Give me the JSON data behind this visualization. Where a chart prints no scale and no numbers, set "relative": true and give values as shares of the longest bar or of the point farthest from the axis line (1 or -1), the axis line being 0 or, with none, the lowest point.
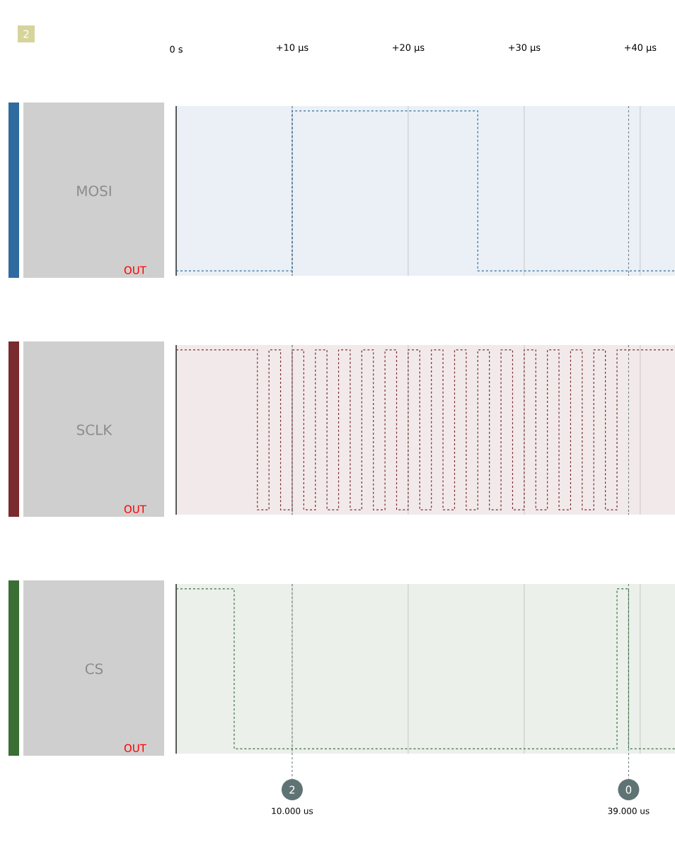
{
  "chart_data": [
    {
      "type": "step",
      "title": "MOSI",
      "relative": true,
      "x": [
        0,
        10,
        26,
        43
      ],
      "series": [
        {
          "color": "#2f6b9f",
          "values": [
            0,
            1,
            0,
            0
          ]
        }
      ],
      "xlim": [
        0,
        43
      ],
      "xticks": [
        {
          "value": 0,
          "label": "0 s"
        },
        {
          "value": 10,
          "label": "+10 µs"
        },
        {
          "value": 20,
          "label": "+20 µs"
        },
        {
          "value": 30,
          "label": "+30 µs"
        },
        {
          "value": 40,
          "label": "+40 µs"
        }
      ],
      "tick_labels": "x",
      "grid": "x",
      "line_style": "dashed",
      "ref_lines": [
        {
          "axis": "x",
          "value": 10,
          "color": "#5f7375",
          "line_style": "dashed"
        },
        {
          "axis": "x",
          "value": 39,
          "color": "#5f7375",
          "line_style": "dashed"
        }
      ],
      "annotations": [
        "2",
        "OUT"
      ]
    },
    {
      "type": "step",
      "title": "SCLK",
      "relative": true,
      "x": [
        0,
        7,
        8,
        9,
        10,
        11,
        12,
        13,
        14,
        15,
        16,
        17,
        18,
        19,
        20,
        21,
        22,
        23,
        24,
        25,
        26,
        27,
        28,
        29,
        30,
        31,
        32,
        33,
        34,
        35,
        36,
        37,
        38,
        43
      ],
      "series": [
        {
          "color": "#7a2b2e",
          "values": [
            1,
            0,
            1,
            0,
            1,
            0,
            1,
            0,
            1,
            0,
            1,
            0,
            1,
            0,
            1,
            0,
            1,
            0,
            1,
            0,
            1,
            0,
            1,
            0,
            1,
            0,
            1,
            0,
            1,
            0,
            1,
            0,
            1,
            1
          ]
        }
      ],
      "xlim": [
        0,
        43
      ],
      "xticks": [
        {
          "value": 0,
          "label": null
        },
        {
          "value": 10,
          "label": null
        },
        {
          "value": 20,
          "label": null
        },
        {
          "value": 30,
          "label": null
        },
        {
          "value": 40,
          "label": null
        }
      ],
      "tick_labels": false,
      "grid": "x",
      "line_style": "dashed",
      "ref_lines": [
        {
          "axis": "x",
          "value": 10,
          "color": "#5f7375",
          "line_style": "dashed"
        },
        {
          "axis": "x",
          "value": 39,
          "color": "#5f7375",
          "line_style": "dashed"
        }
      ],
      "annotations": [
        "OUT"
      ]
    },
    {
      "type": "step",
      "title": "CS",
      "relative": true,
      "x": [
        0,
        5,
        38,
        39,
        43
      ],
      "series": [
        {
          "color": "#3b6e34",
          "values": [
            1,
            0,
            1,
            0,
            0
          ]
        }
      ],
      "xlim": [
        0,
        43
      ],
      "xticks": [
        {
          "value": 0,
          "label": null
        },
        {
          "value": 10,
          "label": null
        },
        {
          "value": 20,
          "label": null
        },
        {
          "value": 30,
          "label": null
        },
        {
          "value": 40,
          "label": null
        }
      ],
      "tick_labels": false,
      "grid": "x",
      "line_style": "dashed",
      "ref_lines": [
        {
          "axis": "x",
          "value": 10,
          "label": "10.000 us",
          "color": "#5f7375",
          "line_style": "dashed"
        },
        {
          "axis": "x",
          "value": 39,
          "label": "39.000 us",
          "color": "#5f7375",
          "line_style": "dashed"
        }
      ],
      "annotations": [
        "2",
        "0",
        "OUT"
      ]
    }
  ]
}
